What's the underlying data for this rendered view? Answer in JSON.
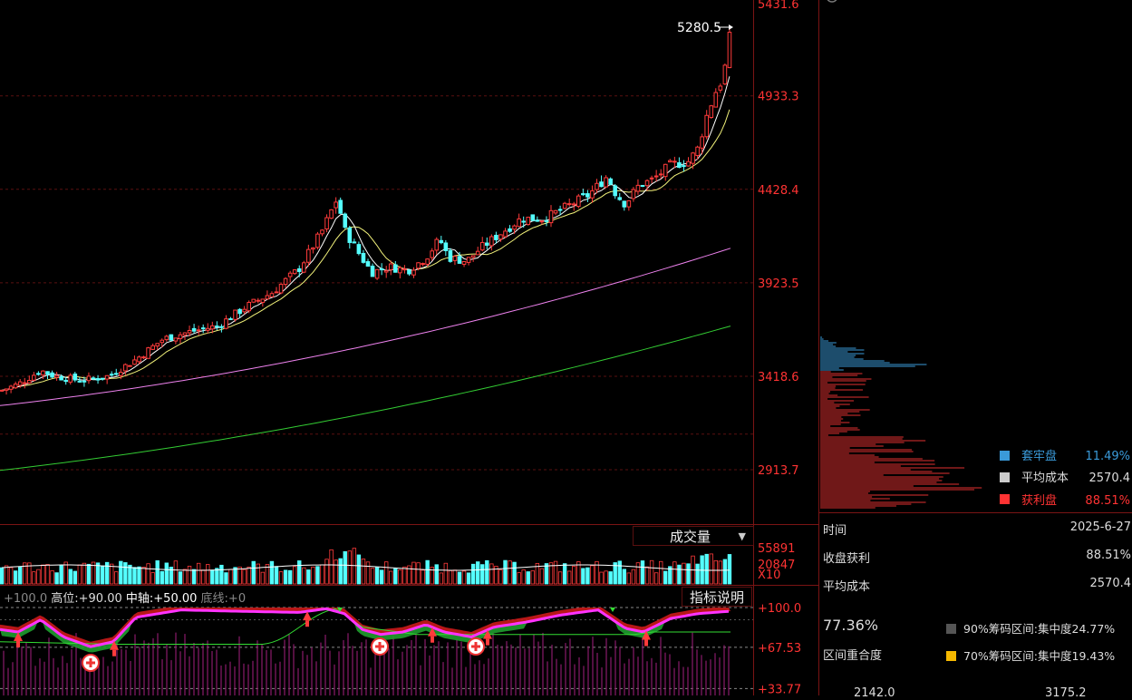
{
  "price_axis": {
    "labels": [
      "5431.6",
      "4933.3",
      "4428.4",
      "3923.5",
      "3418.6",
      "2913.7"
    ],
    "label_color": "#ff3333",
    "last_price": "5280.5"
  },
  "volume_panel": {
    "selector_label": "成交量",
    "selector_arrow": "▼",
    "axis_labels": [
      "55891",
      "20847",
      "X10"
    ]
  },
  "indicator_panel": {
    "button_label": "指标说明",
    "legend": {
      "value": "+100.0",
      "high_label": "高位:",
      "high_value": "+90.00",
      "mid_label": "中轴:",
      "mid_value": "+50.00",
      "low_label": "底线:",
      "low_value": "+0"
    },
    "axis_labels": [
      "+100.0",
      "+67.53",
      "+33.77"
    ]
  },
  "chips": {
    "legend": [
      {
        "label": "套牢盘",
        "value": "11.49%",
        "color": "#3a9ad9"
      },
      {
        "label": "平均成本",
        "value": "2570.4",
        "color": "#cccccc"
      },
      {
        "label": "获利盘",
        "value": "88.51%",
        "color": "#ff3333"
      }
    ],
    "info": [
      {
        "label": "时间",
        "value": "2025-6-27"
      },
      {
        "label": "收盘获利",
        "value": "88.51%"
      },
      {
        "label": "平均成本",
        "value": "2570.4"
      }
    ],
    "overlap_value": "77.36%",
    "overlap_label": "区间重合度",
    "range90": {
      "label": "90%筹码区间:",
      "value": "集中度24.77%",
      "color": "#555555"
    },
    "range70": {
      "label": "70%筹码区间:",
      "value": "集中度19.43%",
      "color": "#f5b800"
    },
    "bottom_values": [
      "2142.0",
      "3175.2"
    ]
  },
  "chart_data": {
    "type": "candlestick",
    "note_series": [
      "MA5",
      "MA10",
      "MA20",
      "MA60",
      "MA120"
    ],
    "ylim": [
      2620,
      5431.6
    ],
    "y_ticks": [
      5431.6,
      4933.3,
      4428.4,
      3923.5,
      3418.6,
      2913.7
    ],
    "close_last": 5280.5,
    "ma_colors": [
      "#ffffff",
      "#f2f27a",
      "#ee82ee",
      "#33cc33"
    ]
  }
}
